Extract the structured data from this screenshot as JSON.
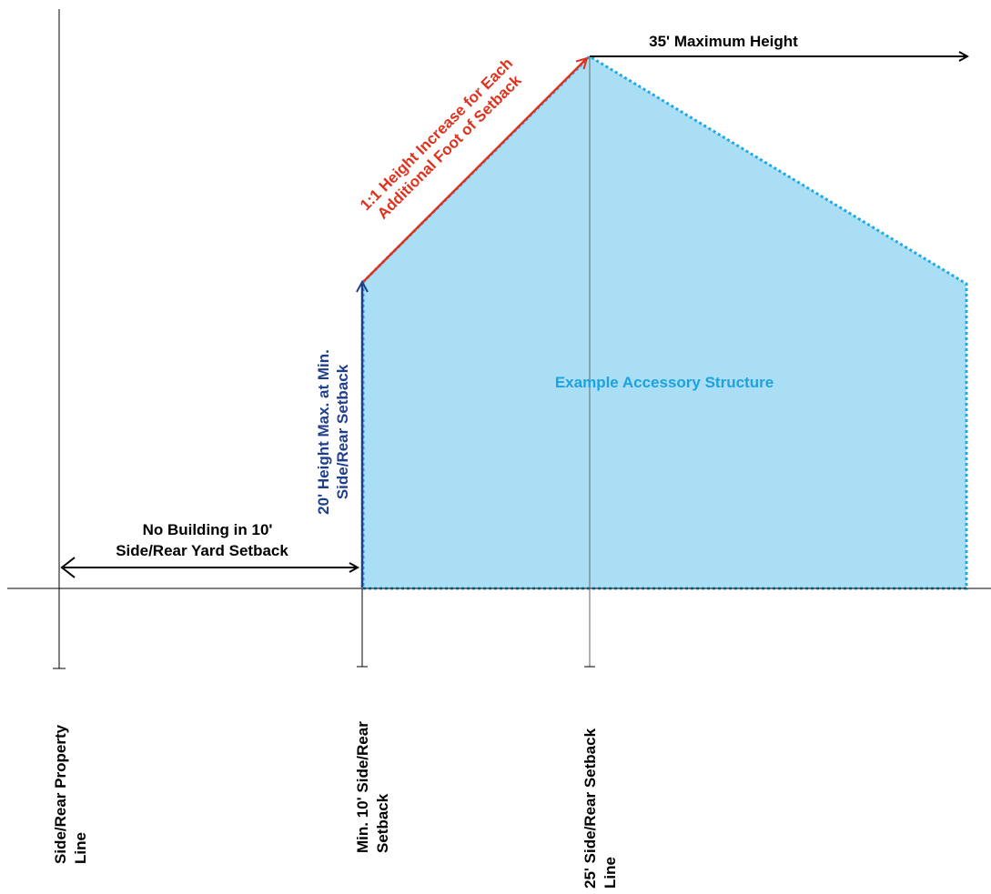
{
  "diagram": {
    "structure_label": "Example Accessory Structure",
    "max_height_label": "35' Maximum Height",
    "slope_label": {
      "line1": "1:1 Height Increase for Each",
      "line2": "Additional Foot of Setback"
    },
    "min_height_label": {
      "line1": "20' Height Max. at Min.",
      "line2": "Side/Rear Setback"
    },
    "no_building_label": {
      "line1": "No Building in 10'",
      "line2": "Side/Rear Yard Setback"
    },
    "property_line_label": {
      "line1": "Side/Rear Property",
      "line2": "Line"
    },
    "min_setback_label": {
      "line1": "Min. 10' Side/Rear",
      "line2": "Setback"
    },
    "setback_25_label": {
      "line1": "25' Side/Rear Setback",
      "line2": "Line"
    }
  },
  "colors": {
    "structure_fill": "#a9def5",
    "structure_border": "#1da9e6",
    "structure_text": "#1da2df",
    "slope_arrow": "#e0311d",
    "height_arrow": "#1f3f8c",
    "line": "#000000"
  }
}
